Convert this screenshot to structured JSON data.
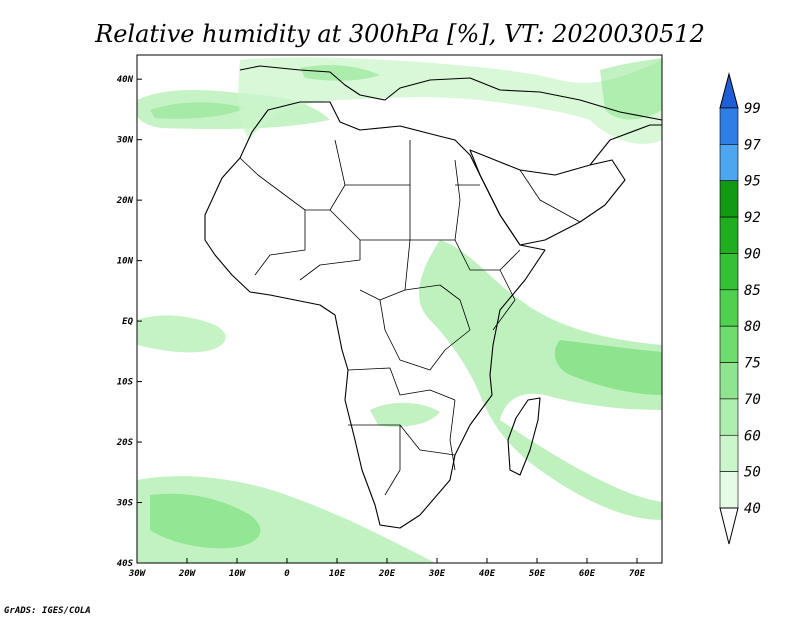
{
  "title": "Relative humidity at 300hPa [%], VT: 2020030512",
  "credit": "GrADS: IGES/COLA",
  "map": {
    "lon_ticks": [
      "30W",
      "20W",
      "10W",
      "0",
      "10E",
      "20E",
      "30E",
      "40E",
      "50E",
      "60E",
      "70E"
    ],
    "lat_ticks": [
      "40N",
      "30N",
      "20N",
      "10N",
      "EQ",
      "10S",
      "20S",
      "30S",
      "40S"
    ],
    "lon_range": [
      -30,
      75
    ],
    "lat_range": [
      -40,
      44
    ],
    "variable": "relative humidity",
    "level": "300hPa",
    "units": "%",
    "valid_time": "2020030512"
  },
  "colorbar": {
    "labels": [
      "99",
      "97",
      "95",
      "92",
      "90",
      "85",
      "80",
      "75",
      "70",
      "60",
      "50",
      "40"
    ],
    "colors": [
      "#1e5fd8",
      "#2f7ee6",
      "#4ea5f0",
      "#139a13",
      "#1fae1f",
      "#35c035",
      "#4fd04f",
      "#6edc6e",
      "#8fe58f",
      "#aeeeae",
      "#cbf5cb",
      "#e6fbe6"
    ],
    "top_arrow_color": "#1e5fd8",
    "bottom_arrow_color": "#ffffff"
  },
  "chart_data": {
    "type": "heatmap",
    "title": "Relative humidity at 300hPa [%], VT: 2020030512",
    "xlabel": "",
    "ylabel": "",
    "xlim": [
      -30,
      75
    ],
    "ylim": [
      -40,
      44
    ],
    "x_ticks": [
      "30W",
      "20W",
      "10W",
      "0",
      "10E",
      "20E",
      "30E",
      "40E",
      "50E",
      "60E",
      "70E"
    ],
    "y_ticks": [
      "40N",
      "30N",
      "20N",
      "10N",
      "EQ",
      "10S",
      "20S",
      "30S",
      "40S"
    ],
    "levels": [
      40,
      50,
      60,
      70,
      75,
      80,
      85,
      90,
      92,
      95,
      97,
      99
    ],
    "grid": false
  }
}
